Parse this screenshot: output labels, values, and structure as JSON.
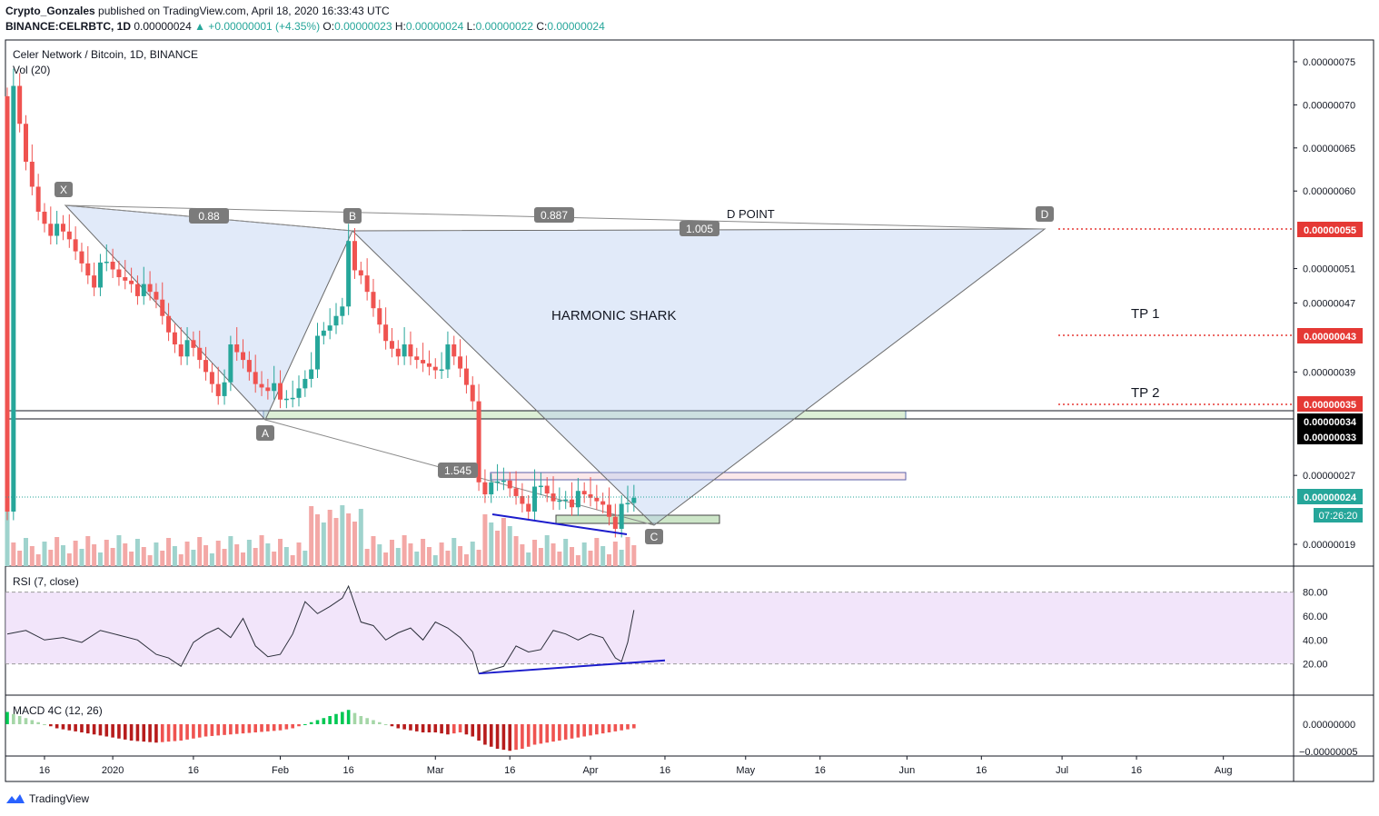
{
  "header": {
    "author": "Crypto_Gonzales",
    "published_text": "published on TradingView.com, April 18, 2020 16:33:43 UTC",
    "symbol": "BINANCE:CELRBTC, 1D",
    "last": "0.00000024",
    "change": "▲ +0.00000001 (+4.35%)",
    "o_label": "O:",
    "o": "0.00000023",
    "h_label": "H:",
    "h": "0.00000024",
    "l_label": "L:",
    "l": "0.00000022",
    "c_label": "C:",
    "c": "0.00000024"
  },
  "footer": {
    "brand": "TradingView"
  },
  "chart_data": {
    "type": "candlestick",
    "title": "Celer Network / Bitcoin, 1D, BINANCE",
    "volume_label": "Vol (20)",
    "x_ticks": [
      "16",
      "2020",
      "16",
      "Feb",
      "16",
      "Mar",
      "16",
      "Apr",
      "16",
      "May",
      "16",
      "Jun",
      "16",
      "Jul",
      "16",
      "Aug"
    ],
    "y_ticks": [
      "0.00000075",
      "0.00000070",
      "0.00000065",
      "0.00000060",
      "0.00000051",
      "0.00000047",
      "0.00000039",
      "0.00000027",
      "0.00000019"
    ],
    "price_range": [
      1.7e-07,
      7.7e-07
    ],
    "price_path": [
      [
        1,
        71
      ],
      [
        3,
        63
      ],
      [
        5,
        58
      ],
      [
        8,
        55
      ],
      [
        10,
        54
      ],
      [
        12,
        52
      ],
      [
        14,
        50
      ],
      [
        16,
        51
      ],
      [
        18,
        50
      ],
      [
        20,
        50
      ],
      [
        22,
        48
      ],
      [
        24,
        47
      ],
      [
        26,
        44
      ],
      [
        28,
        42
      ],
      [
        30,
        41
      ],
      [
        32,
        39
      ],
      [
        34,
        37
      ],
      [
        36,
        41
      ],
      [
        38,
        40
      ],
      [
        40,
        38
      ],
      [
        42,
        38
      ],
      [
        44,
        35
      ],
      [
        46,
        36
      ],
      [
        48,
        39
      ],
      [
        50,
        42
      ],
      [
        52,
        44
      ],
      [
        54,
        47
      ],
      [
        55,
        55
      ],
      [
        57,
        49
      ],
      [
        59,
        46
      ],
      [
        61,
        43
      ],
      [
        63,
        42
      ],
      [
        65,
        40
      ],
      [
        67,
        40
      ],
      [
        69,
        40
      ],
      [
        71,
        41
      ],
      [
        73,
        39
      ],
      [
        75,
        36
      ],
      [
        76,
        27
      ],
      [
        78,
        25
      ],
      [
        80,
        26
      ],
      [
        82,
        25
      ],
      [
        84,
        24
      ],
      [
        86,
        25
      ],
      [
        88,
        24
      ],
      [
        90,
        25
      ],
      [
        92,
        24
      ],
      [
        94,
        24
      ],
      [
        96,
        24
      ],
      [
        98,
        22
      ],
      [
        100,
        23
      ],
      [
        101,
        24
      ]
    ],
    "pattern": {
      "name": "HARMONIC SHARK",
      "points": [
        {
          "label": "X",
          "day": 9,
          "price": 5.8e-07
        },
        {
          "label": "A",
          "day": 41,
          "price": 3.4e-07
        },
        {
          "label": "B",
          "day": 55,
          "price": 5.5e-07
        },
        {
          "label": "C",
          "day": 100,
          "price": 2.2e-07
        },
        {
          "label": "D",
          "day": 163,
          "price": 5.5e-07
        }
      ],
      "ratios": [
        "0.88",
        "0.887",
        "1.005",
        "1.545"
      ],
      "d_label": "D POINT"
    },
    "targets": [
      {
        "label": "TP 1",
        "price": "0.00000043"
      },
      {
        "label": "TP 2",
        "price": "0.00000035"
      }
    ],
    "price_labels": {
      "d_target": "0.00000055",
      "tp1": "0.00000043",
      "tp2": "0.00000035",
      "level_a": "0.00000034",
      "level_b": "0.00000033",
      "current": "0.00000024",
      "countdown": "07:26:20"
    },
    "rsi": {
      "label": "RSI (7, close)",
      "levels": [
        "80.00",
        "60.00",
        "40.00",
        "20.00"
      ],
      "upper": 80,
      "lower": 20,
      "values": [
        [
          0,
          45
        ],
        [
          3,
          48
        ],
        [
          6,
          40
        ],
        [
          9,
          42
        ],
        [
          12,
          38
        ],
        [
          15,
          48
        ],
        [
          18,
          44
        ],
        [
          21,
          40
        ],
        [
          24,
          28
        ],
        [
          26,
          25
        ],
        [
          28,
          18
        ],
        [
          30,
          38
        ],
        [
          32,
          45
        ],
        [
          34,
          50
        ],
        [
          36,
          42
        ],
        [
          38,
          58
        ],
        [
          40,
          35
        ],
        [
          42,
          26
        ],
        [
          44,
          28
        ],
        [
          46,
          45
        ],
        [
          48,
          72
        ],
        [
          50,
          62
        ],
        [
          52,
          68
        ],
        [
          54,
          75
        ],
        [
          55,
          85
        ],
        [
          57,
          55
        ],
        [
          59,
          52
        ],
        [
          61,
          40
        ],
        [
          63,
          46
        ],
        [
          65,
          50
        ],
        [
          67,
          40
        ],
        [
          69,
          55
        ],
        [
          71,
          50
        ],
        [
          73,
          42
        ],
        [
          75,
          30
        ],
        [
          76,
          12
        ],
        [
          78,
          15
        ],
        [
          80,
          18
        ],
        [
          82,
          35
        ],
        [
          84,
          30
        ],
        [
          86,
          32
        ],
        [
          88,
          48
        ],
        [
          90,
          45
        ],
        [
          92,
          40
        ],
        [
          94,
          45
        ],
        [
          96,
          42
        ],
        [
          98,
          25
        ],
        [
          99,
          22
        ],
        [
          100,
          38
        ],
        [
          101,
          65
        ]
      ],
      "divergence_line": [
        [
          76,
          12
        ],
        [
          106,
          23
        ]
      ]
    },
    "macd": {
      "label": "MACD 4C (12, 26)",
      "zero_label": "0.00000000",
      "neg_label": "−0.00000005",
      "hist_profile": [
        [
          0,
          3
        ],
        [
          4,
          1
        ],
        [
          8,
          -1
        ],
        [
          12,
          -2
        ],
        [
          16,
          -3
        ],
        [
          20,
          -4
        ],
        [
          24,
          -4.5
        ],
        [
          28,
          -4
        ],
        [
          32,
          -3
        ],
        [
          36,
          -2.5
        ],
        [
          40,
          -2
        ],
        [
          44,
          -1.5
        ],
        [
          46,
          -1
        ],
        [
          48,
          0
        ],
        [
          50,
          1
        ],
        [
          52,
          2
        ],
        [
          54,
          3
        ],
        [
          55,
          3.5
        ],
        [
          57,
          2
        ],
        [
          59,
          1
        ],
        [
          61,
          0
        ],
        [
          63,
          -1
        ],
        [
          65,
          -1.5
        ],
        [
          67,
          -2
        ],
        [
          69,
          -2
        ],
        [
          71,
          -2.5
        ],
        [
          73,
          -2
        ],
        [
          75,
          -3
        ],
        [
          77,
          -5
        ],
        [
          79,
          -6
        ],
        [
          81,
          -6.5
        ],
        [
          83,
          -6
        ],
        [
          85,
          -5
        ],
        [
          87,
          -4.5
        ],
        [
          89,
          -4
        ],
        [
          91,
          -3.5
        ],
        [
          93,
          -3
        ],
        [
          95,
          -2.5
        ],
        [
          97,
          -2
        ],
        [
          99,
          -1.5
        ],
        [
          101,
          -1
        ]
      ]
    },
    "colors": {
      "up": "#26a69a",
      "down": "#ef5350",
      "pattern_fill": "#b3cbf0",
      "divergence": "#1c1ccc",
      "target_line": "#e53935",
      "rsi_band": "#e9d4f7"
    }
  }
}
